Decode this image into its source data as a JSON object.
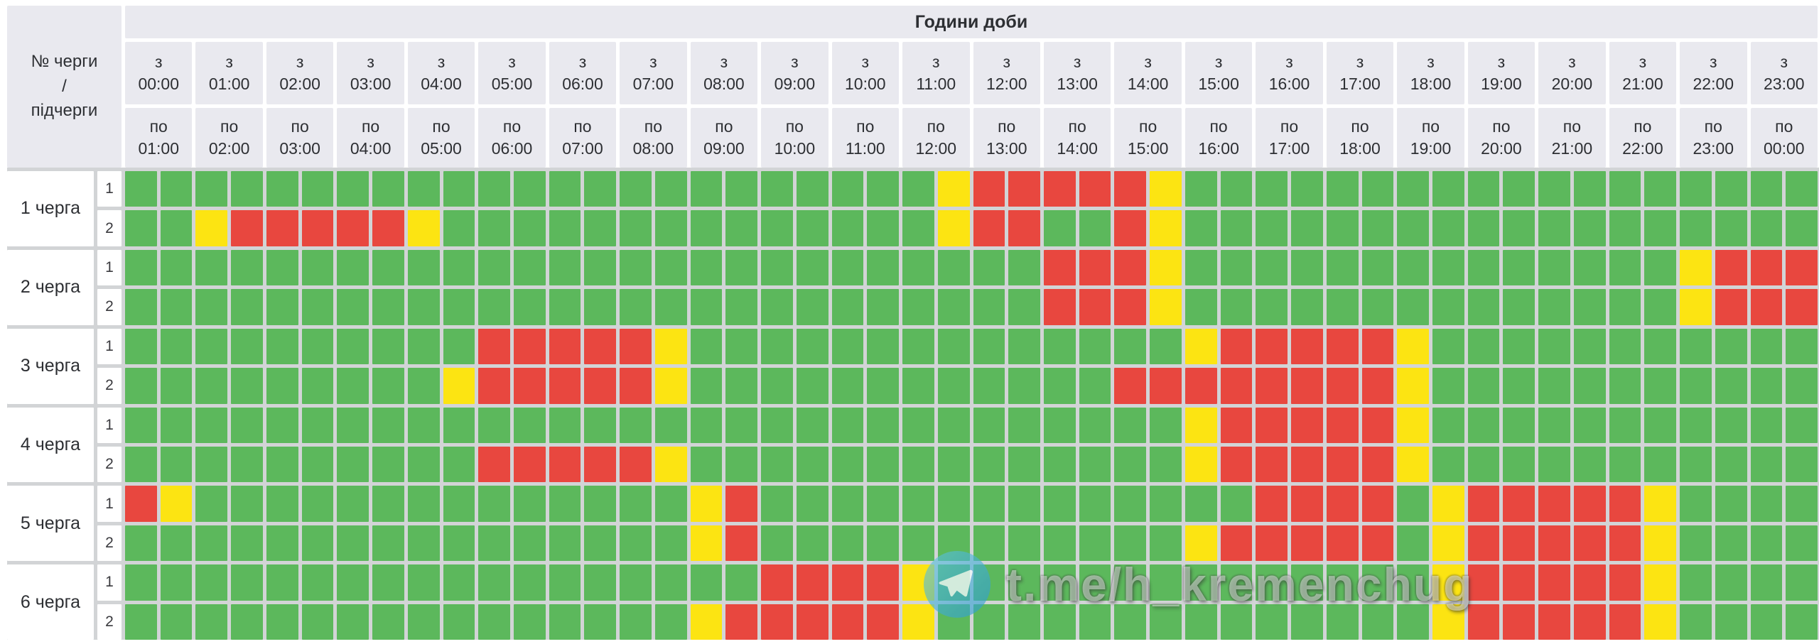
{
  "header": {
    "corner_label": "№ черги\n/\nпідчерги",
    "hours_title": "Години доби",
    "from_word": "з",
    "to_word": "по",
    "columns": [
      {
        "start": "00:00",
        "end": "01:00"
      },
      {
        "start": "01:00",
        "end": "02:00"
      },
      {
        "start": "02:00",
        "end": "03:00"
      },
      {
        "start": "03:00",
        "end": "04:00"
      },
      {
        "start": "04:00",
        "end": "05:00"
      },
      {
        "start": "05:00",
        "end": "06:00"
      },
      {
        "start": "06:00",
        "end": "07:00"
      },
      {
        "start": "07:00",
        "end": "08:00"
      },
      {
        "start": "08:00",
        "end": "09:00"
      },
      {
        "start": "09:00",
        "end": "10:00"
      },
      {
        "start": "10:00",
        "end": "11:00"
      },
      {
        "start": "11:00",
        "end": "12:00"
      },
      {
        "start": "12:00",
        "end": "13:00"
      },
      {
        "start": "13:00",
        "end": "14:00"
      },
      {
        "start": "14:00",
        "end": "15:00"
      },
      {
        "start": "15:00",
        "end": "16:00"
      },
      {
        "start": "16:00",
        "end": "17:00"
      },
      {
        "start": "17:00",
        "end": "18:00"
      },
      {
        "start": "18:00",
        "end": "19:00"
      },
      {
        "start": "19:00",
        "end": "20:00"
      },
      {
        "start": "20:00",
        "end": "21:00"
      },
      {
        "start": "21:00",
        "end": "22:00"
      },
      {
        "start": "22:00",
        "end": "23:00"
      },
      {
        "start": "23:00",
        "end": "00:00"
      }
    ]
  },
  "legend": {
    "slot_minutes": 30,
    "status_map": {
      "G": "power-on",
      "R": "power-off",
      "Y": "possible-off"
    },
    "on_color": "#5cb85c",
    "off_color": "#e8473f",
    "maybe_color": "#fce412"
  },
  "queues": [
    {
      "label": "1 черга",
      "subqueues": [
        {
          "number": "1",
          "slots": "GGGGGGGGGGGGGGGGGGGGGGGYRRRRRYGGGGGGGGGGGGGGGGGG"
        },
        {
          "number": "2",
          "slots": "GGYRRRRRYGGGGGGGGGGGGGGYRRGGRYGGGGGGGGGGGGGGGGGG"
        }
      ]
    },
    {
      "label": "2 черга",
      "subqueues": [
        {
          "number": "1",
          "slots": "GGGGGGGGGGGGGGGGGGGGGGGGGGRRRYGGGGGGGGGGGGGGYRRR"
        },
        {
          "number": "2",
          "slots": "GGGGGGGGGGGGGGGGGGGGGGGGGGRRRYGGGGGGGGGGGGGGYRRR"
        }
      ]
    },
    {
      "label": "3 черга",
      "subqueues": [
        {
          "number": "1",
          "slots": "GGGGGGGGGGRRRRRYGGGGGGGGGGGGGGYRRRRRYGGGGGGGGGGG"
        },
        {
          "number": "2",
          "slots": "GGGGGGGGGYRRRRRYGGGGGGGGGGGGRRRRRRRRYGGGGGGGGGGG"
        }
      ]
    },
    {
      "label": "4 черга",
      "subqueues": [
        {
          "number": "1",
          "slots": "GGGGGGGGGGGGGGGGGGGGGGGGGGGGGGYRRRRRYGGGGGGGGGGG"
        },
        {
          "number": "2",
          "slots": "GGGGGGGGGGRRRRRYGGGGGGGGGGGGGGYRRRRRYGGGGGGGGGGG"
        }
      ]
    },
    {
      "label": "5 черга",
      "subqueues": [
        {
          "number": "1",
          "slots": "RYGGGGGGGGGGGGGGYRGGGGGGGGGGGGGGRRRRGYRRRRRYGGGG"
        },
        {
          "number": "2",
          "slots": "GGGGGGGGGGGGGGGGYRGGGGGGGGGGGGYRRRRRGYRRRRRYGGGG"
        }
      ]
    },
    {
      "label": "6 черга",
      "subqueues": [
        {
          "number": "1",
          "slots": "GGGGGGGGGGGGGGGGGGRRRRYGGGGGGGGGGGGGGYRRRRRYGGGG"
        },
        {
          "number": "2",
          "slots": "GGGGGGGGGGGGGGGGYRRRRRYGGGGGGGGGGGGGGYRRRRRYGGGG"
        }
      ]
    }
  ],
  "watermark": {
    "text": "t.me/h_kremenchug",
    "icon": "telegram-plane-icon",
    "icon_color": "#3fa6d8"
  }
}
